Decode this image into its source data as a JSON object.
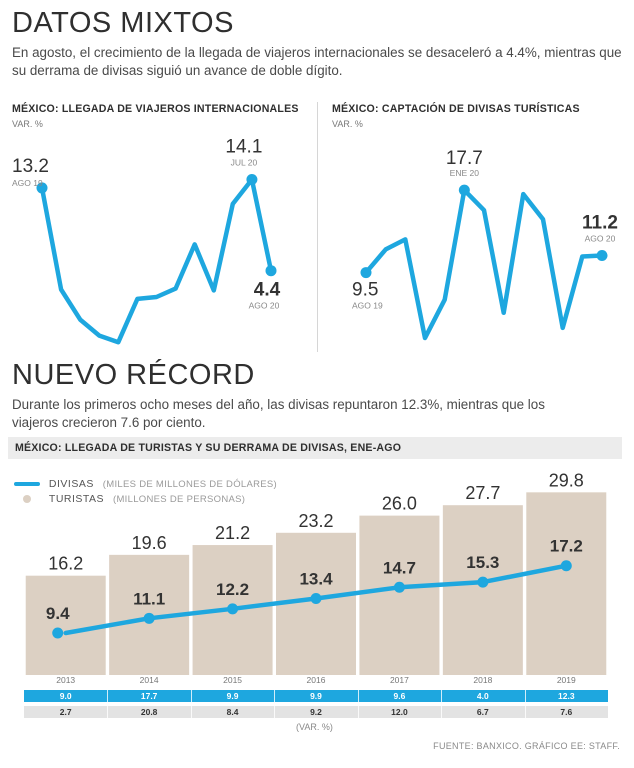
{
  "header": {
    "title": "DATOS MIXTOS",
    "intro": "En agosto, el crecimiento de la llegada de viajeros internacionales se desaceleró a 4.4%, mientras que su derrama de divisas siguió un avance de doble dígito."
  },
  "section2": {
    "title": "NUEVO RÉCORD",
    "intro": "Durante los primeros ocho meses del año, las divisas repuntaron 12.3%, mientras que los viajeros crecieron 7.6 por ciento."
  },
  "footer": {
    "var_note": "(VAR. %)",
    "source": "FUENTE: BANXICO. GRÁFICO EE: STAFF."
  },
  "colors": {
    "line": "#1ea7df",
    "bar": "#dcd0c3",
    "text": "#333333"
  },
  "chart_data": [
    {
      "type": "line",
      "title": "MÉXICO: LLEGADA DE VIAJEROS INTERNACIONALES",
      "ylabel": "VAR. %",
      "values": [
        13.2,
        2.4,
        -0.8,
        -2.5,
        -3.2,
        1.4,
        1.6,
        2.5,
        7.2,
        2.3,
        11.5,
        14.1,
        4.4
      ],
      "ylim": [
        -3.5,
        15
      ],
      "annotations": [
        {
          "index": 0,
          "value": "13.2",
          "period": "AGO 19"
        },
        {
          "index": 11,
          "value": "14.1",
          "period": "JUL 20"
        },
        {
          "index": 12,
          "value": "4.4",
          "period": "AGO 20"
        }
      ]
    },
    {
      "type": "line",
      "title": "MÉXICO: CAPTACIÓN DE DIVISAS TURÍSTICAS",
      "ylabel": "VAR. %",
      "values": [
        9.5,
        11.8,
        12.8,
        3.0,
        6.8,
        17.7,
        15.7,
        5.5,
        17.3,
        14.8,
        4.0,
        11.1,
        11.2
      ],
      "ylim": [
        2.5,
        19
      ],
      "annotations": [
        {
          "index": 0,
          "value": "9.5",
          "period": "AGO 19"
        },
        {
          "index": 5,
          "value": "17.7",
          "period": "ENE 20"
        },
        {
          "index": 12,
          "value": "11.2",
          "period": "AGO 20"
        }
      ]
    },
    {
      "type": "bar",
      "title": "MÉXICO: LLEGADA DE TURISTAS Y SU DERRAMA DE DIVISAS, ENE-AGO",
      "categories": [
        "2013",
        "2014",
        "2015",
        "2016",
        "2017",
        "2018",
        "2019"
      ],
      "ylim": [
        0,
        30
      ],
      "series": [
        {
          "name": "DIVISAS",
          "unit": "(MILES DE MILLONES DE DÓLARES)",
          "type": "line",
          "values": [
            9.4,
            11.1,
            12.2,
            13.4,
            14.7,
            15.3,
            17.2
          ],
          "labels": [
            "9.4",
            "11.1",
            "12.2",
            "13.4",
            "14.7",
            "15.3",
            "17.2"
          ],
          "var": [
            "9.0",
            "17.7",
            "9.9",
            "9.9",
            "9.6",
            "4.0",
            "12.3"
          ]
        },
        {
          "name": "TURISTAS",
          "unit": "(MILLONES DE PERSONAS)",
          "type": "bar",
          "values": [
            16.2,
            19.6,
            21.2,
            23.2,
            26.0,
            27.7,
            29.8
          ],
          "labels": [
            "16.2",
            "19.6",
            "21.2",
            "23.2",
            "26.0",
            "27.7",
            "29.8"
          ],
          "var": [
            "2.7",
            "20.8",
            "8.4",
            "9.2",
            "12.0",
            "6.7",
            "7.6"
          ]
        }
      ]
    }
  ]
}
